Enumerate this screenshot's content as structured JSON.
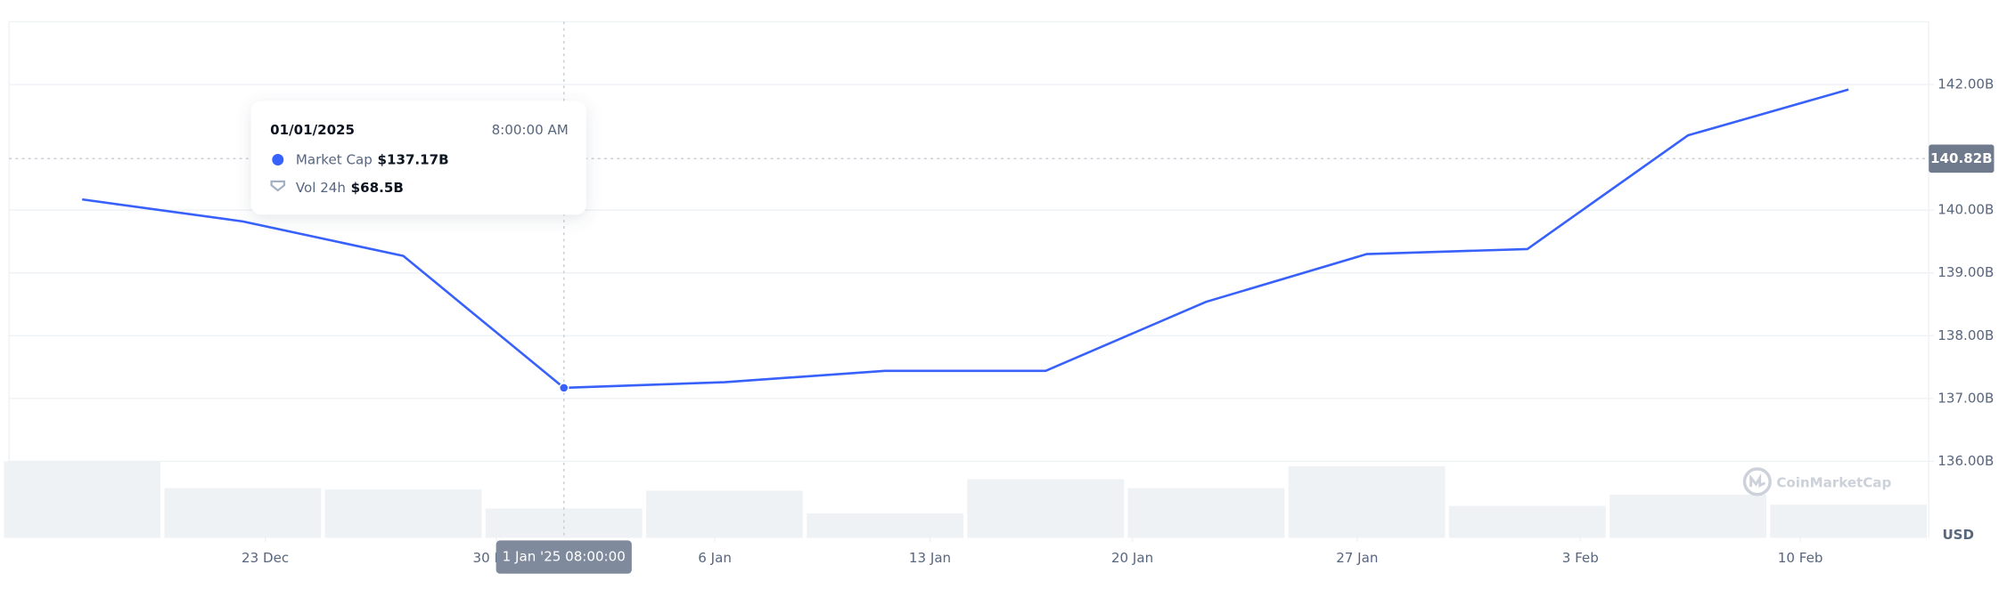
{
  "chart_data": {
    "type": "line",
    "x": [
      0,
      1,
      2,
      3,
      4,
      5,
      6,
      7,
      8,
      9,
      10,
      11
    ],
    "xlim": [
      -0.455,
      11.5
    ],
    "xticks": [
      {
        "value": 1.14,
        "label": "23 Dec"
      },
      {
        "value": 2.58,
        "label": "30 Dec"
      },
      {
        "value": 3.94,
        "label": "6 Jan"
      },
      {
        "value": 5.28,
        "label": "13 Jan"
      },
      {
        "value": 6.54,
        "label": "20 Jan"
      },
      {
        "value": 7.94,
        "label": "27 Jan"
      },
      {
        "value": 9.33,
        "label": "3 Feb"
      },
      {
        "value": 10.7,
        "label": "10 Feb"
      }
    ],
    "series": [
      {
        "name": "Market Cap",
        "color": "#3861fb",
        "values": [
          140.17,
          139.82,
          139.27,
          137.17,
          137.26,
          137.44,
          137.44,
          138.54,
          139.3,
          139.38,
          141.19,
          141.92
        ]
      }
    ],
    "volume": {
      "name": "Vol 24h",
      "color": "#eff2f5",
      "values": [
        178.7,
        116,
        113,
        68.5,
        110,
        57,
        137,
        116,
        167,
        74.5,
        101,
        77.5
      ]
    },
    "vlim": [
      0,
      1204
    ],
    "ylim": [
      134.78,
      143.0
    ],
    "yticks": [
      {
        "value": 136,
        "label": "136.00B"
      },
      {
        "value": 137,
        "label": "137.00B"
      },
      {
        "value": 138,
        "label": "138.00B"
      },
      {
        "value": 139,
        "label": "139.00B"
      },
      {
        "value": 140,
        "label": "140.00B"
      },
      {
        "value": 142,
        "label": "142.00B"
      }
    ],
    "grid": true,
    "current_price": {
      "value": 140.82,
      "label": "140.82B"
    },
    "tooltip": {
      "active_index": 3,
      "date": "01/01/2025",
      "time": "8:00:00 AM",
      "market_cap_label": "$137.17B",
      "volume_label": "$68.5B"
    },
    "crosshair_label": "1 Jan '25 08:00:00",
    "currency": "USD",
    "watermark": "CoinMarketCap"
  }
}
